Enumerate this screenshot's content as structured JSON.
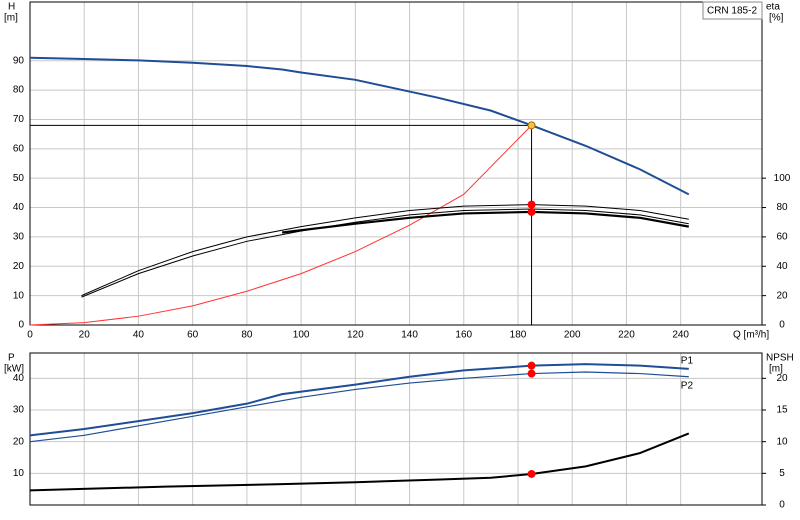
{
  "chart_data": [
    {
      "type": "line",
      "model": "CRN 185-2",
      "y_label": "H",
      "y_unit": "[m]",
      "y2_label": "eta",
      "y2_unit": "[%]",
      "x_label": "Q [m³/h]",
      "xlim": [
        0,
        270
      ],
      "xticks": [
        0,
        20,
        40,
        60,
        80,
        100,
        120,
        140,
        160,
        180,
        200,
        220,
        240
      ],
      "ylim": [
        0,
        110
      ],
      "yticks": [
        0,
        10,
        20,
        30,
        40,
        50,
        60,
        70,
        80,
        90
      ],
      "y2lim": [
        0,
        220
      ],
      "y2ticks": [
        0,
        20,
        40,
        60,
        80,
        100
      ],
      "grid": true,
      "series": [
        {
          "color": "#1f4e96",
          "width": 2,
          "x": [
            0,
            20,
            40,
            60,
            80,
            93,
            100,
            120,
            140,
            150,
            170,
            185,
            205,
            225,
            243
          ],
          "values": [
            91,
            90.6,
            90.1,
            89.3,
            88.2,
            87,
            86,
            83.5,
            79.5,
            77.5,
            73,
            68,
            61,
            53,
            44.5
          ]
        },
        {
          "color": "#ff3333",
          "width": 1,
          "x": [
            0,
            20,
            40,
            60,
            80,
            100,
            120,
            140,
            160,
            185
          ],
          "values": [
            0,
            0.8,
            3,
            6.5,
            11.5,
            17.5,
            25,
            34,
            44.5,
            68
          ]
        },
        {
          "color": "#000000",
          "width": 1,
          "axis": "y2",
          "x": [
            19,
            40,
            60,
            80,
            100,
            120,
            140,
            160,
            185,
            205,
            225,
            243
          ],
          "values": [
            20,
            37,
            50,
            60,
            67,
            73,
            78,
            81,
            82,
            81,
            78,
            72
          ]
        },
        {
          "color": "#000000",
          "width": 1,
          "axis": "y2",
          "x": [
            19,
            40,
            60,
            80,
            100,
            120,
            140,
            160,
            185,
            205,
            225,
            243
          ],
          "values": [
            19,
            35,
            47,
            57,
            64,
            70,
            75,
            78,
            79,
            78,
            75,
            69
          ]
        },
        {
          "color": "#000000",
          "width": 2.2,
          "axis": "y2",
          "x": [
            93,
            120,
            140,
            160,
            185,
            205,
            225,
            243
          ],
          "values": [
            63,
            69,
            73,
            76,
            77,
            76,
            73,
            67
          ]
        }
      ],
      "points": [
        {
          "x": 185,
          "y": 68,
          "color": "#f5c242"
        },
        {
          "x": 185,
          "y": 82,
          "axis": "y2",
          "color": "#ff0000"
        },
        {
          "x": 185,
          "y": 77,
          "axis": "y2",
          "color": "#ff0000"
        }
      ],
      "duty_point": {
        "x": 185,
        "y": 68
      }
    },
    {
      "type": "line",
      "y_label": "P",
      "y_unit": "[kW]",
      "y2_label": "NPSH",
      "y2_unit": "[m]",
      "xlim": [
        0,
        270
      ],
      "xticks": [
        0,
        20,
        40,
        60,
        80,
        100,
        120,
        140,
        160,
        180,
        200,
        220,
        240
      ],
      "ylim": [
        0,
        48
      ],
      "yticks": [
        10,
        20,
        30,
        40
      ],
      "y2lim": [
        0,
        24
      ],
      "y2ticks": [
        0,
        5,
        10,
        15,
        20
      ],
      "grid": true,
      "series": [
        {
          "name": "P1",
          "color": "#1f4e96",
          "width": 2,
          "x": [
            0,
            20,
            40,
            60,
            80,
            93,
            120,
            140,
            160,
            185,
            205,
            225,
            243
          ],
          "values": [
            22,
            24,
            26.5,
            29,
            32,
            35,
            38,
            40.5,
            42.5,
            44,
            44.5,
            44,
            43
          ]
        },
        {
          "name": "P2",
          "color": "#1f4e96",
          "width": 1.2,
          "x": [
            0,
            20,
            40,
            60,
            80,
            100,
            120,
            140,
            160,
            185,
            205,
            225,
            243
          ],
          "values": [
            20,
            22,
            25,
            28,
            31,
            34,
            36.5,
            38.5,
            40,
            41.5,
            42,
            41.5,
            40.5
          ]
        },
        {
          "color": "#000000",
          "width": 2,
          "axis": "y2",
          "x": [
            0,
            50,
            93,
            120,
            150,
            170,
            185,
            205,
            225,
            243
          ],
          "values": [
            2.3,
            2.9,
            3.3,
            3.6,
            4,
            4.3,
            4.9,
            6.1,
            8.2,
            11.3
          ]
        }
      ],
      "points": [
        {
          "x": 185,
          "y": 44,
          "color": "#ff0000"
        },
        {
          "x": 185,
          "y": 41.5,
          "color": "#ff0000"
        },
        {
          "x": 185,
          "y": 4.9,
          "axis": "y2",
          "color": "#ff0000"
        }
      ]
    }
  ]
}
